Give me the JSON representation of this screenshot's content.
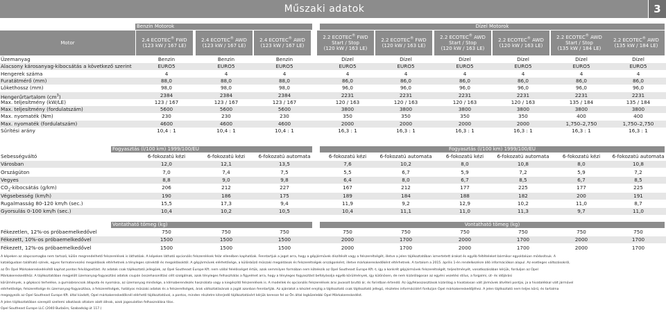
{
  "header": {
    "title": "Műszaki adatok",
    "page": "3"
  },
  "groups": {
    "benzin": "Benzin Motorok",
    "dizel": "Dízel Motorok"
  },
  "motor_label": "Motor",
  "columns": [
    {
      "l1": "2.4 ECOTEC",
      "l1b": " FWD",
      "l2": "(123 kW / 167 LE)",
      "l3": ""
    },
    {
      "l1": "2.4 ECOTEC",
      "l1b": " AWD",
      "l2": "(123 kW / 167 LE)",
      "l3": ""
    },
    {
      "l1": "2.4 ECOTEC",
      "l1b": " AWD",
      "l2": "(123 kW / 167 LE)",
      "l3": ""
    },
    {
      "l1": "2.2 ECOTEC",
      "l1b": " FWD",
      "l2": "Start / Stop",
      "l3": "(120 kW / 163 LE)"
    },
    {
      "l1": "2.2 ECOTEC",
      "l1b": " FWD",
      "l2": "(120 kW / 163 LE)",
      "l3": ""
    },
    {
      "l1": "2.2 ECOTEC",
      "l1b": " AWD",
      "l2": "Start / Stop",
      "l3": "(120 kW / 163 LE)"
    },
    {
      "l1": "2.2 ECOTEC",
      "l1b": " AWD",
      "l2": "(120 kW / 163 LE)",
      "l3": ""
    },
    {
      "l1": "2.2 ECOTEC",
      "l1b": " AWD",
      "l2": "Start / Stop",
      "l3": "(135 kW / 184 LE)"
    },
    {
      "l1": "2.2 ECOTEC",
      "l1b": " AWD",
      "l2": "(135 kW / 184 LE)",
      "l3": ""
    }
  ],
  "section1": [
    {
      "label": "Üzemanyag",
      "values": [
        "Benzin",
        "Benzin",
        "Benzin",
        "Dízel",
        "Dízel",
        "Dízel",
        "Dízel",
        "Dízel",
        "Dízel"
      ]
    },
    {
      "label": "Alacsony károsanyag-kibocsátás a következő szerint",
      "values": [
        "EURO5",
        "EURO5",
        "EURO5",
        "EURO5",
        "EURO5",
        "EURO5",
        "EURO5",
        "EURO5",
        "EURO5"
      ]
    },
    {
      "label": "Hengerek száma",
      "values": [
        "4",
        "4",
        "4",
        "4",
        "4",
        "4",
        "4",
        "4",
        "4"
      ]
    },
    {
      "label": "Furatátmérő (mm)",
      "values": [
        "88,0",
        "88,0",
        "88,0",
        "86,0",
        "86,0",
        "86,0",
        "86,0",
        "86,0",
        "86,0"
      ]
    },
    {
      "label": "Lökethossz (mm)",
      "values": [
        "98,0",
        "98,0",
        "98,0",
        "96,0",
        "96,0",
        "96,0",
        "96,0",
        "96,0",
        "96,0"
      ]
    },
    {
      "label": "Hengerűrtartalom (cm",
      "sup": "3",
      "tail": ")",
      "values": [
        "2384",
        "2384",
        "2384",
        "2231",
        "2231",
        "2231",
        "2231",
        "2231",
        "2231"
      ]
    },
    {
      "label": "Max. teljesítmény (kW/LE)",
      "values": [
        "123 / 167",
        "123 / 167",
        "123 / 167",
        "120 / 163",
        "120 / 163",
        "120 / 163",
        "120 / 163",
        "135 / 184",
        "135 / 184"
      ]
    },
    {
      "label": "Max. teljesítmény (fordulatszám)",
      "values": [
        "5600",
        "5600",
        "5600",
        "3800",
        "3800",
        "3800",
        "3800",
        "3800",
        "3800"
      ]
    },
    {
      "label": "Max. nyomaték (Nm)",
      "values": [
        "230",
        "230",
        "230",
        "350",
        "350",
        "350",
        "350",
        "400",
        "400"
      ]
    },
    {
      "label": "Max. nyomaték (fordulatszám)",
      "values": [
        "4600",
        "4600",
        "4600",
        "2000",
        "2000",
        "2000",
        "2000",
        "1,750–2,750",
        "1,750–2,750"
      ]
    },
    {
      "label": "Sűrítési arány",
      "values": [
        "10,4 : 1",
        "10,4 : 1",
        "10,4 : 1",
        "16,3 : 1",
        "16,3 : 1",
        "16,3 : 1",
        "16,3 : 1",
        "16,3 : 1",
        "16,3 : 1"
      ]
    }
  ],
  "consumption_band": {
    "benzin": "Fogyasztás (l/100 km) 1999/100/EU",
    "dizel": "Fogyasztás (l/100 km) 1999/100/EU"
  },
  "section2": [
    {
      "label": "Sebességváltó",
      "values": [
        "6-fokozatú kézi",
        "6-fokozatú kézi",
        "6-fokozatú automata",
        "6-fokozatú kézi",
        "6-fokozatú automata",
        "6-fokozatú kézi",
        "6-fokozatú automata",
        "6-fokozatú kézi",
        "6-fokozatú automata"
      ]
    },
    {
      "label": "Városban",
      "values": [
        "12,0",
        "12,1",
        "13,5",
        "7,6",
        "10,2",
        "8,0",
        "10,8",
        "8,0",
        "10,8"
      ]
    },
    {
      "label": "Országúton",
      "values": [
        "7,0",
        "7,4",
        "7,5",
        "5,5",
        "6,7",
        "5,9",
        "7,2",
        "5,9",
        "7,2"
      ]
    },
    {
      "label": "Vegyes",
      "values": [
        "8,8",
        "9,0",
        "9,8",
        "6,4",
        "8,0",
        "6,7",
        "8,5",
        "6,7",
        "8,5"
      ]
    },
    {
      "label": "CO",
      "sub": "2",
      "tail": "-kibocsátás (g/km)",
      "values": [
        "206",
        "212",
        "227",
        "167",
        "212",
        "177",
        "225",
        "177",
        "225"
      ]
    },
    {
      "label": "Végsebesség (km/h)",
      "values": [
        "190",
        "186",
        "175",
        "189",
        "184",
        "188",
        "182",
        "200",
        "191"
      ]
    },
    {
      "label": "Rugalmasság 80-120 km/h (sec.)",
      "values": [
        "15,5",
        "17,3",
        "9,4",
        "11,9",
        "9,2",
        "12,9",
        "10,2",
        "11,0",
        "8,7"
      ]
    },
    {
      "label": "Gyorsulás 0-100 km/h (sec.)",
      "values": [
        "10,4",
        "10,2",
        "10,5",
        "10,4",
        "11,1",
        "11,0",
        "11,3",
        "9,7",
        "11,0"
      ]
    }
  ],
  "towing_band": {
    "benzin": "Vontatható tömeg (kg)",
    "dizel": "Vontatható tömeg (kg)"
  },
  "section3": [
    {
      "label": "Fékezetlen, 12%-os próbaemelkedővel",
      "values": [
        "750",
        "750",
        "750",
        "750",
        "750",
        "750",
        "750",
        "750",
        "750"
      ]
    },
    {
      "label": "Fékezett, 10%-os próbaemelkedővel",
      "values": [
        "1500",
        "1500",
        "1500",
        "2000",
        "1700",
        "2000",
        "1700",
        "2000",
        "1700"
      ]
    },
    {
      "label": "Fékezett, 12%-os próbaemelkedővel",
      "values": [
        "1500",
        "1500",
        "1500",
        "2000",
        "1700",
        "2000",
        "1700",
        "2000",
        "1700"
      ]
    }
  ],
  "footnotes": [
    "A képeken az alapcsomagba nem tartozó, külön megrendelhető felszerelések is láthatóak. A képeken látható opcionális felszerelések felár ellenében kaphatóak. Fenntartjuk a jogot arra, hogy a gépjárművek díszítését vagy a felszereltségét, illetve a jelen tájékoztatóban ismertetett árakat és egyéb feltételeket bármikor egyoldalúan módosítsuk. A",
    "katalógusban található színek, egyes formatervezési megoldások eltérhetnek a tényleges színektől és megoldásoktól. A gépjárművek elérhetősége, a különböző műszaki megoldások és felszereltségek országonként, illetve márkakereskedőként eltérhetnek. A tartalom a 2015. április 1-én rendelkezésre álló információkon alapul. Az esetleges változásokról,",
    "az Ön Opel Márkakereskedésétől kaphat pontos felvilágosítást. Az adatok csak tájékoztató jellegűek, az Opel Southeast Europe Kft. nem vállal felelősséget értük, azok semmilyen formában nem kötelezik az Opel Southeast Europe Kft.-t, így a konkrét gépjárművek felszereltségét, teljesítményét, vonatkozásában kérjük, forduljon az Opel",
    "Márkakereskedőhöz. A tájékoztatóban megjelölt üzemanyag-fogyasztási adatok csupán összehasonlítási célt szolgálnak, azok tényleges felhaszhálás a figyelmet arra, hogy a tényleges fogyasztást befolyásolja egyéb körülmények, így különösen, de nem kizárólagosan az egyéni vezetési stílus, a forgalmi, út- és időjárási",
    "körülmények, a gépkocsi terhelése, a gumiabroncsok állapota és nyomása, az üzemanyag minősége, a klímaberendezés használata vagy a kiegészítő felszerelések is. A modellek és opcionális felszerelések árai javasolt bruttó ár, és forintban értendő. Az ügyfelasszosztások kizárólag a hivatalosan vált járművek átvételi pontjai, ja a hivatalékkal vált járművel",
    "elérhetősége, felszereltsége és üzemanyag-fogyasztása, a felszereltségek, hatályos műszaki adatok és a felszereltségek, árak változtatásának a jogát azonban fenntartják. Az ajánlatot a készlet erejéig a tájékoztató csak tájékoztató jellegű, részletes információért forduljon Opel márkakereskedőjéhez. A jelen tájékoztató nem teljes körű, és tartalma",
    "megegyezik az Opel Southeast Europe Kft. által kiadott, Opel márkakereskedőknél elérhető tájékoztatóval, a pontos, minden részletre kiterjedő tájékoztatásért kérjük keresse fel az Ön által legközelebbi Opel Márkakereskedést.",
    "A jelen tájékoztatóban szereplő szellemi alkotások oltalom alatt állnak, azok jogosulatlan felhasználása tilos.",
    "Opel Southeast Europe LLC (2040 Budaörs, Szabadság út 117.)"
  ]
}
